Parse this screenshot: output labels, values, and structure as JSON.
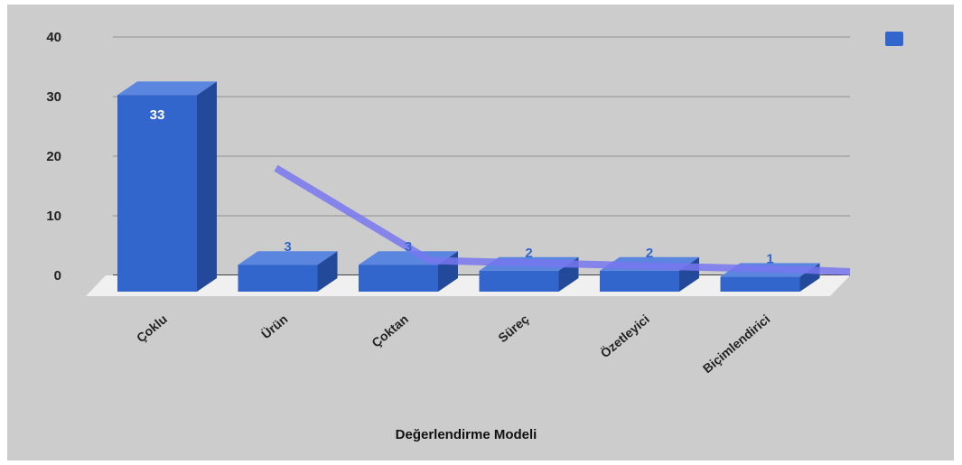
{
  "chart_data": {
    "type": "bar",
    "title": "",
    "xlabel": "Değerlendirme Modeli",
    "ylabel": "",
    "categories": [
      "Çoklu",
      "Ürün",
      "Çoktan",
      "Süreç",
      "Özetleyici",
      "Biçimlendirici"
    ],
    "series": [
      {
        "values": [
          33,
          3,
          3,
          2,
          2,
          1
        ],
        "color": "#3366cc"
      }
    ],
    "trend_line": {
      "values": [
        18,
        3,
        2.5,
        2,
        1.5,
        1
      ],
      "color": "#7777ee"
    },
    "y_ticks": [
      "0",
      "10",
      "20",
      "30",
      "40"
    ],
    "ylim": [
      0,
      40
    ],
    "grid": true,
    "style": "3d",
    "legend": {
      "position": "top-right"
    }
  },
  "colors": {
    "background": "#cccccc",
    "bar_front": "#3366cc",
    "bar_top": "#5b86e0",
    "bar_side": "#234a9a",
    "floor": "#f0f0f0",
    "data_label_inside": "#ffffff",
    "data_label_outside": "#3366cc"
  }
}
